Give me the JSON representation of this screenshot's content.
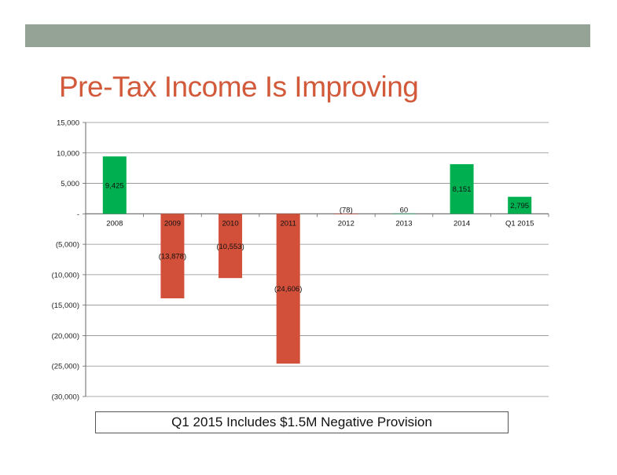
{
  "slide": {
    "title": "Pre-Tax Income Is Improving",
    "caption": "Q1 2015 Includes $1.5M Negative Provision"
  },
  "colors": {
    "header_bar": "#94a395",
    "title": "#d25a3b",
    "positive": "#00b050",
    "negative": "#d2503a",
    "grid": "#8c8c8c"
  },
  "chart_data": {
    "type": "bar",
    "title": "",
    "xlabel": "",
    "ylabel": "",
    "ylim": [
      -30000,
      15000
    ],
    "y_tick_values": [
      15000,
      10000,
      5000,
      0,
      -5000,
      -10000,
      -15000,
      -20000,
      -25000,
      -30000
    ],
    "y_tick_labels": [
      "15,000",
      "10,000",
      "5,000",
      "-",
      "(5,000)",
      "(10,000)",
      "(15,000)",
      "(20,000)",
      "(25,000)",
      "(30,000)"
    ],
    "categories": [
      "2008",
      "2009",
      "2010",
      "2011",
      "2012",
      "2013",
      "2014",
      "Q1 2015"
    ],
    "values": [
      9425,
      -13878,
      -10553,
      -24606,
      -78,
      60,
      8151,
      2795
    ],
    "data_labels": [
      "9,425",
      "(13,878)",
      "(10,553)",
      "(24,606)",
      "(78)",
      "60",
      "8,151",
      "2,795"
    ],
    "grid": true,
    "legend": "none"
  }
}
